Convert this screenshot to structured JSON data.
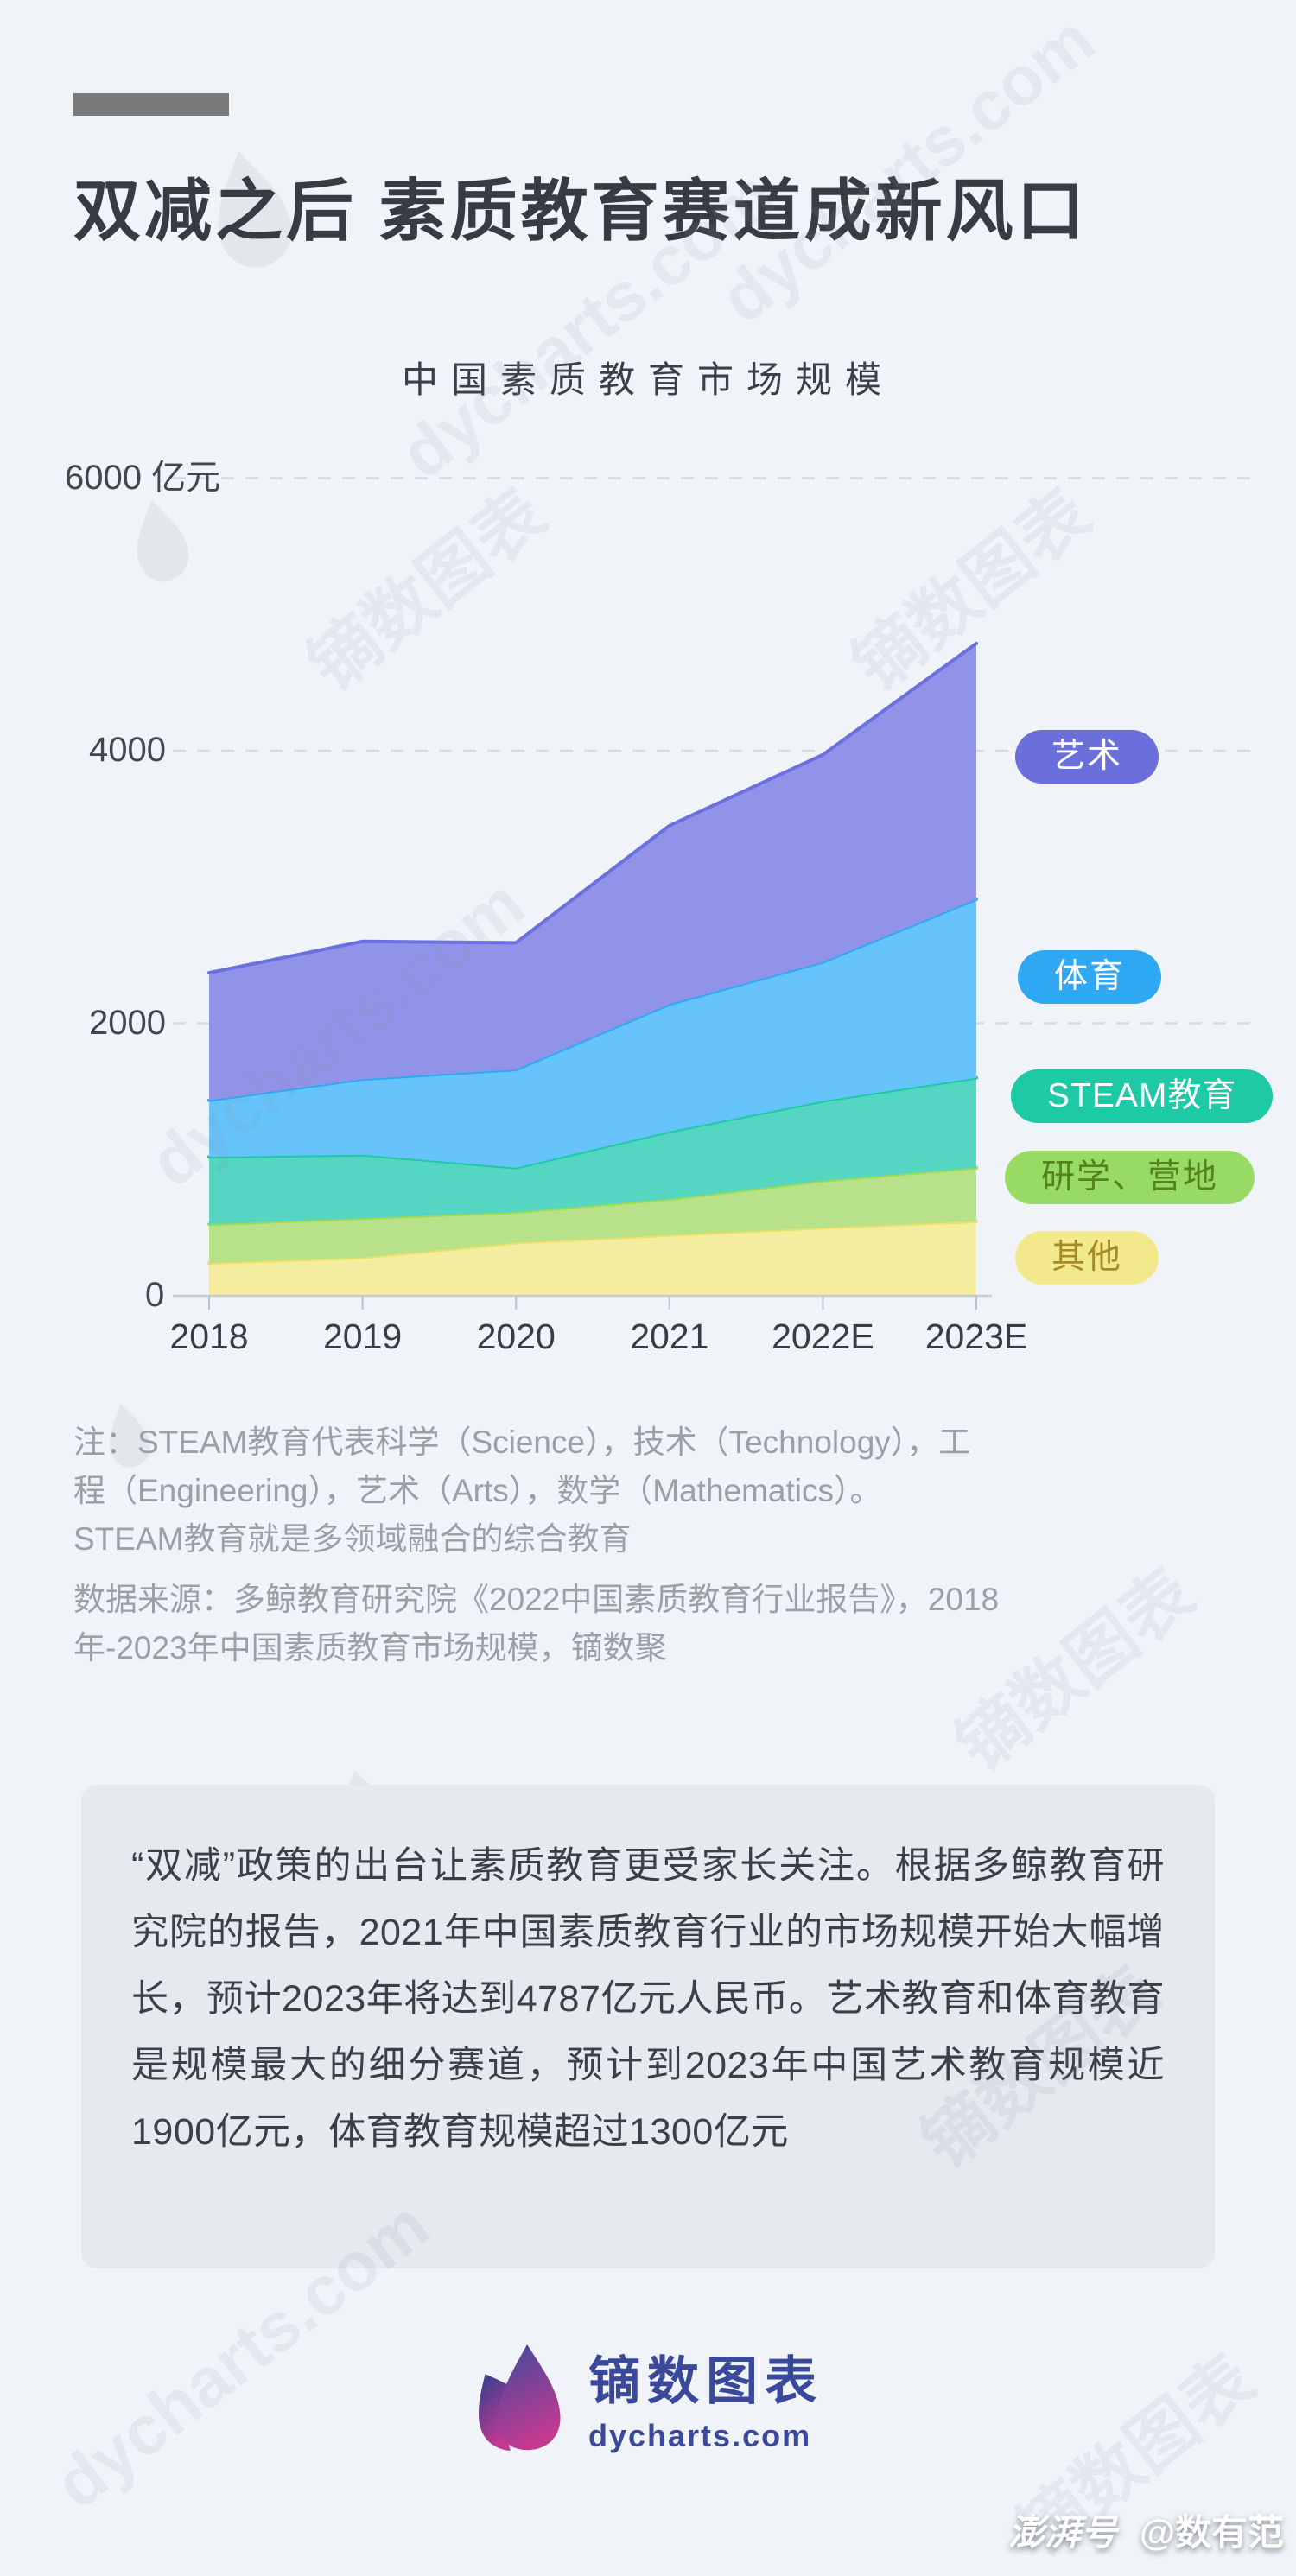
{
  "page": {
    "title": "双减之后 素质教育赛道成新风口",
    "diagonal_watermark": "dycharts.com",
    "brand_watermark": "镝数图表",
    "bottom_watermark_source": "澎湃号",
    "bottom_watermark_account": "@数有范"
  },
  "chart_data": {
    "type": "area",
    "stacked": true,
    "title": "中国素质教育市场规模",
    "unit": "亿元",
    "categories": [
      "2018",
      "2019",
      "2020",
      "2021",
      "2022E",
      "2023E"
    ],
    "series": [
      {
        "name": "其他",
        "values": [
          240,
          280,
          390,
          445,
          500,
          546
        ],
        "fill": "#F4EC9E",
        "stroke": "#EDDF67",
        "pill_bg": "#F2E98C",
        "pill_text": "#A68B25"
      },
      {
        "name": "研学、营地",
        "values": [
          285,
          290,
          225,
          265,
          345,
          394
        ],
        "fill": "#B7E289",
        "stroke": "#9BDA52",
        "pill_bg": "#97DB64",
        "pill_text": "#55831D"
      },
      {
        "name": "STEAM教育",
        "values": [
          495,
          465,
          325,
          495,
          585,
          660
        ],
        "fill": "#55D6C2",
        "stroke": "#1EC9A6",
        "pill_bg": "#1EC9A6",
        "pill_text": "#FFFFFF"
      },
      {
        "name": "体育",
        "values": [
          415,
          555,
          720,
          935,
          1020,
          1310
        ],
        "fill": "#66C4FA",
        "stroke": "#2BA9F3",
        "pill_bg": "#2FA8F4",
        "pill_text": "#FFFFFF"
      },
      {
        "name": "艺术",
        "values": [
          935,
          1010,
          930,
          1310,
          1520,
          1877
        ],
        "fill": "#9193E9",
        "stroke": "#6B70E0",
        "pill_bg": "#6A6FDB",
        "pill_text": "#FFFFFF"
      }
    ],
    "totals": [
      2370,
      2600,
      2590,
      3450,
      3970,
      4787
    ],
    "ylim": [
      0,
      6000
    ],
    "y_ticks": [
      {
        "value": 0,
        "label": "0",
        "suffix": ""
      },
      {
        "value": 2000,
        "label": "2000",
        "suffix": ""
      },
      {
        "value": 4000,
        "label": "4000",
        "suffix": ""
      },
      {
        "value": 6000,
        "label": "6000",
        "suffix": " 亿元"
      }
    ],
    "grid": "dashed horizontal",
    "legend_position": "right"
  },
  "notes": {
    "line1": "注：STEAM教育代表科学（Science），技术（Technology），工",
    "line2": "程（Engineering），艺术（Arts），数学（Mathematics）。",
    "line3": "STEAM教育就是多领域融合的综合教育",
    "source_line1": "数据来源：多鲸教育研究院《2022中国素质教育行业报告》，2018",
    "source_line2": "年-2023年中国素质教育市场规模，镝数聚"
  },
  "summary": {
    "text": "“双减”政策的出台让素质教育更受家长关注。根据多鲸教育研究院的报告，2021年中国素质教育行业的市场规模开始大幅增长，预计2023年将达到4787亿元人民币。艺术教育和体育教育是规模最大的细分赛道，预计到2023年中国艺术教育规模近1900亿元，体育教育规模超过1300亿元"
  },
  "footer": {
    "brand_name": "镝数图表",
    "brand_url": "dycharts.com",
    "brand_color": "#3A499B"
  }
}
